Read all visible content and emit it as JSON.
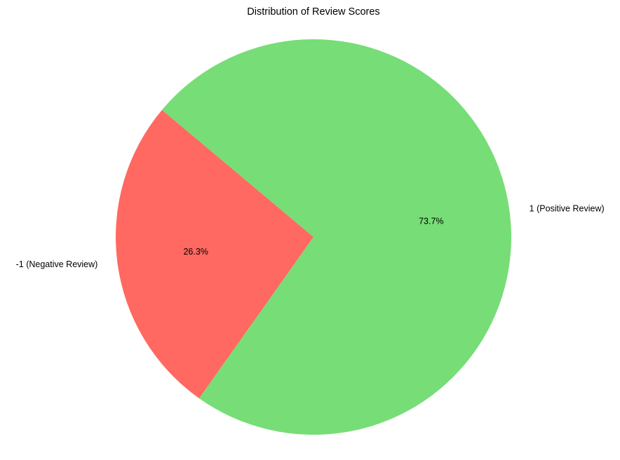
{
  "chart_data": {
    "type": "pie",
    "title": "Distribution of Review Scores",
    "categories": [
      "-1 (Negative Review)",
      "1 (Positive Review)"
    ],
    "values": [
      26.3,
      73.7
    ],
    "percent_labels": [
      "26.3%",
      "73.7%"
    ],
    "colors": [
      "#ff6961",
      "#77dd77"
    ],
    "start_angle_deg": 140,
    "counterclockwise": true,
    "legend": "none"
  }
}
